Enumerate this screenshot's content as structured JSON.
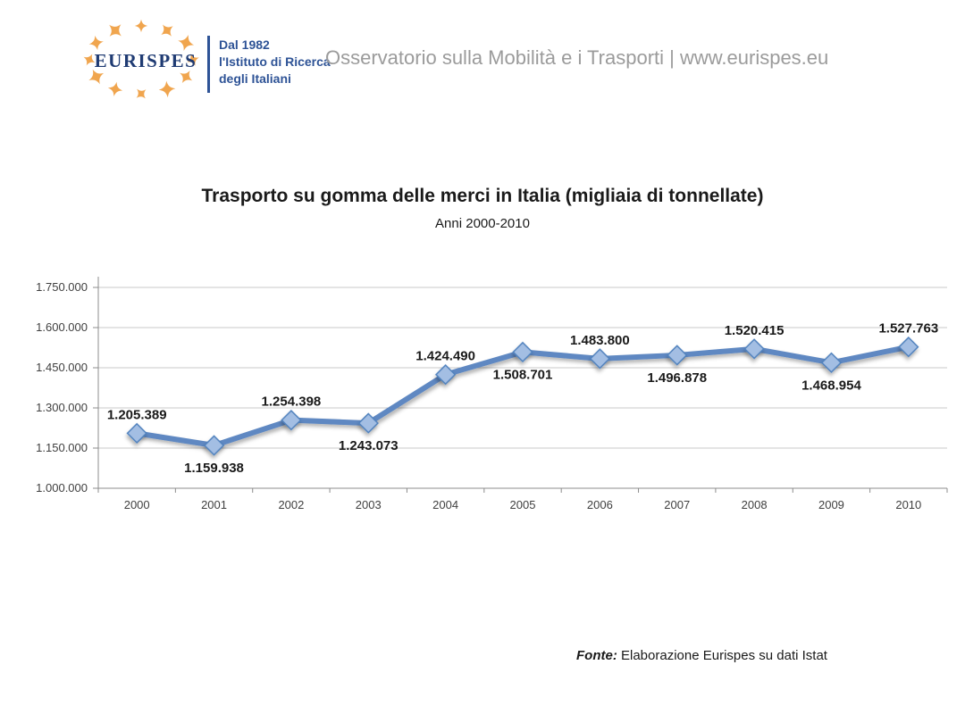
{
  "header": {
    "brand": "EURISPES",
    "tagline": [
      "Dal 1982",
      "l'Istituto di Ricerca",
      "degli Italiani"
    ],
    "title": "Osservatorio sulla Mobilità e i Trasporti | www.eurispes.eu"
  },
  "chart_data": {
    "type": "line",
    "title": "Trasporto su gomma delle merci in Italia (migliaia di tonnellate)",
    "subtitle": "Anni 2000-2010",
    "categories": [
      "2000",
      "2001",
      "2002",
      "2003",
      "2004",
      "2005",
      "2006",
      "2007",
      "2008",
      "2009",
      "2010"
    ],
    "values": [
      1205389,
      1159938,
      1254398,
      1243073,
      1424490,
      1508701,
      1483800,
      1496878,
      1520415,
      1468954,
      1527763
    ],
    "data_labels": [
      "1.205.389",
      "1.159.938",
      "1.254.398",
      "1.243.073",
      "1.424.490",
      "1.508.701",
      "1.483.800",
      "1.496.878",
      "1.520.415",
      "1.468.954",
      "1.527.763"
    ],
    "label_position": [
      "above",
      "below",
      "above",
      "below",
      "above",
      "below",
      "above",
      "below",
      "above",
      "below",
      "above"
    ],
    "y_ticks": [
      "1.000.000",
      "1.150.000",
      "1.300.000",
      "1.450.000",
      "1.600.000",
      "1.750.000"
    ],
    "ylim": [
      1000000,
      1750000
    ],
    "grid": true,
    "legend": "none",
    "line_color": "#5e88c2",
    "marker_fill": "#a3bee3",
    "marker_stroke": "#4f81bd"
  },
  "footer": {
    "fonte": "Fonte:",
    "text": " Elaborazione Eurispes su dati Istat"
  },
  "colors": {
    "brand_blue": "#2e5396",
    "brand_navy": "#1f3b73",
    "brand_orange": "#f0a54e",
    "header_gray": "#9b9b9b",
    "grid_gray": "#c8c8c8",
    "axis_gray": "#8c8c8c",
    "tick_text": "#3f3f3f"
  }
}
